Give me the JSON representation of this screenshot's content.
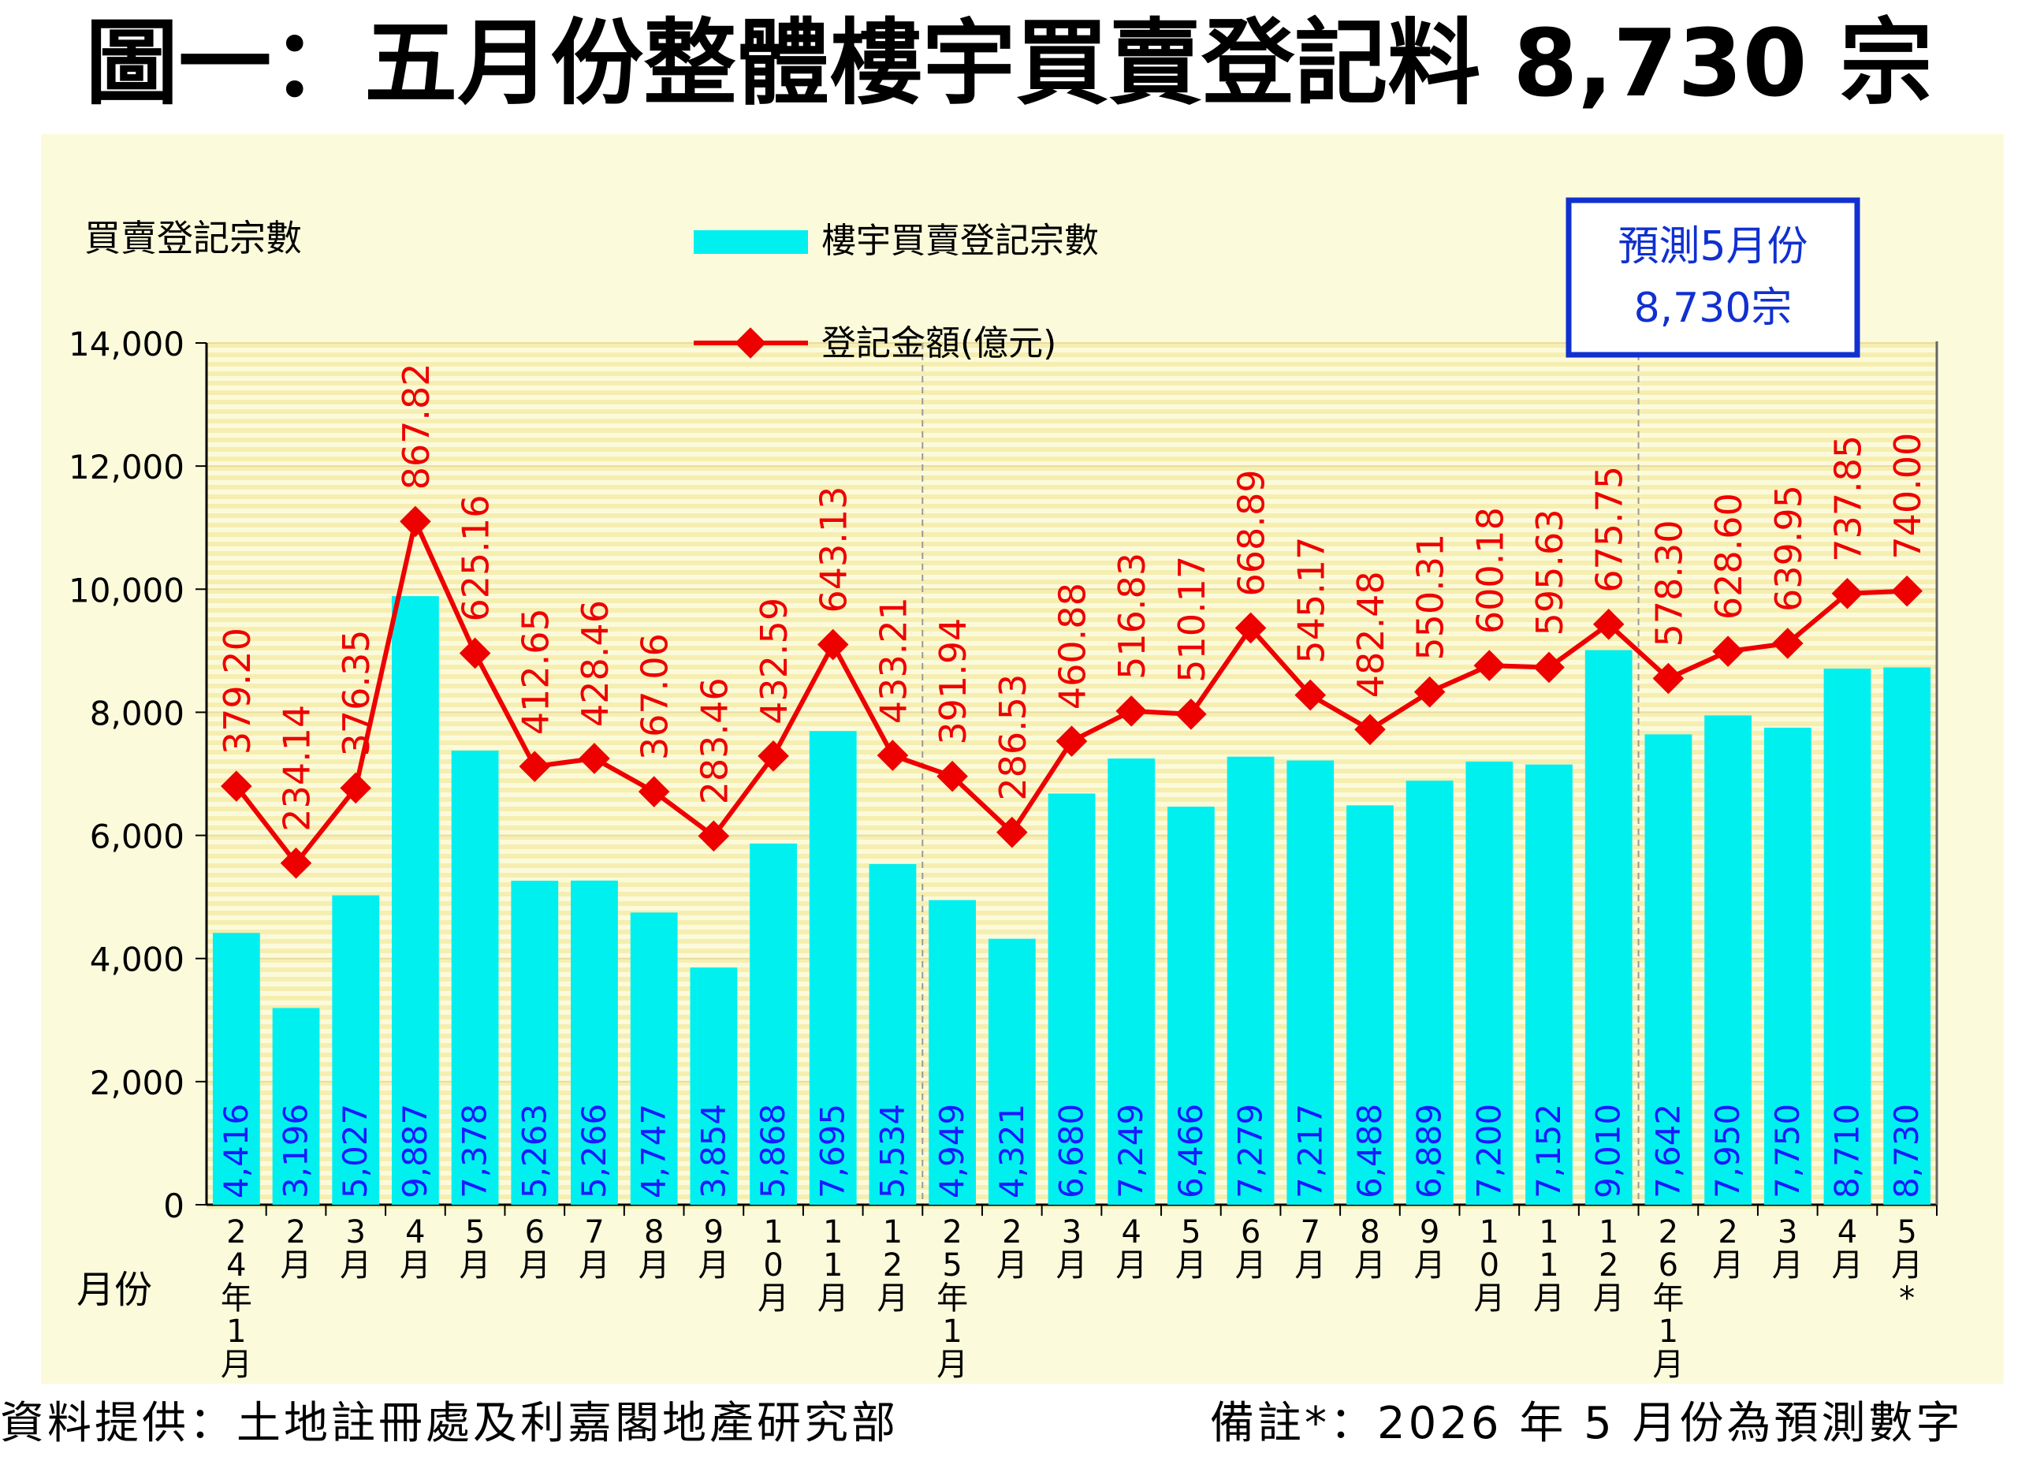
{
  "title": "圖一：五月份整體樓宇買賣登記料 8,730 宗",
  "footer": {
    "source": "資料提供：土地註冊處及利嘉閣地產研究部",
    "remark": "備註*：2026 年 5 月份為預測數字"
  },
  "forecast_box": {
    "line1": "預測5月份",
    "line2": "8,730宗"
  },
  "colors": {
    "bar": "#00f0f0",
    "line": "#ee0000",
    "bar_label": "#1a1aff",
    "line_label": "#ee0000",
    "background": "#fbfbdb",
    "stripe": "#f6eeb0",
    "box_border": "#1030d0",
    "box_text": "#1030d0"
  },
  "chart_data": {
    "type": "bar",
    "ylabel": "買賣登記宗數",
    "xlabel": "月份",
    "ylim": [
      0,
      14000
    ],
    "yticks": [
      "0",
      "2,000",
      "4,000",
      "6,000",
      "8,000",
      "10,000",
      "12,000",
      "14,000"
    ],
    "legend_position": "top-center",
    "grid": true,
    "categories": [
      "24年1月",
      "2月",
      "3月",
      "4月",
      "5月",
      "6月",
      "7月",
      "8月",
      "9月",
      "10月",
      "11月",
      "12月",
      "25年1月",
      "2月",
      "3月",
      "4月",
      "5月",
      "6月",
      "7月",
      "8月",
      "9月",
      "10月",
      "11月",
      "12月",
      "26年1月",
      "2月",
      "3月",
      "4月",
      "5月*"
    ],
    "series": [
      {
        "name": "樓宇買賣登記宗數",
        "type": "bar",
        "values": [
          4416,
          3196,
          5027,
          9887,
          7378,
          5263,
          5266,
          4747,
          3854,
          5868,
          7695,
          5534,
          4949,
          4321,
          6680,
          7249,
          6466,
          7279,
          7217,
          6488,
          6889,
          7200,
          7152,
          9010,
          7642,
          7950,
          7750,
          8710,
          8730
        ],
        "labels": [
          "4,416",
          "3,196",
          "5,027",
          "9,887",
          "7,378",
          "5,263",
          "5,266",
          "4,747",
          "3,854",
          "5,868",
          "7,695",
          "5,534",
          "4,949",
          "4,321",
          "6,680",
          "7,249",
          "6,466",
          "7,279",
          "7,217",
          "6,488",
          "6,889",
          "7,200",
          "7,152",
          "9,010",
          "7,642",
          "7,950",
          "7,750",
          "8,710",
          "8,730"
        ]
      },
      {
        "name": "登記金額(億元)",
        "type": "line",
        "values": [
          379.2,
          234.14,
          376.35,
          867.82,
          625.16,
          412.65,
          428.46,
          367.06,
          283.46,
          432.59,
          643.13,
          433.21,
          391.94,
          286.53,
          460.88,
          516.83,
          510.17,
          668.89,
          545.17,
          482.48,
          550.31,
          600.18,
          595.63,
          675.75,
          578.3,
          628.6,
          639.95,
          737.85,
          740.0
        ],
        "labels": [
          "379.20",
          "234.14",
          "376.35",
          "867.82",
          "625.16",
          "412.65",
          "428.46",
          "367.06",
          "283.46",
          "432.59",
          "643.13",
          "433.21",
          "391.94",
          "286.53",
          "460.88",
          "516.83",
          "510.17",
          "668.89",
          "545.17",
          "482.48",
          "550.31",
          "600.18",
          "595.63",
          "675.75",
          "578.30",
          "628.60",
          "639.95",
          "737.85",
          "740.00"
        ],
        "plotted_on_count_axis": [
          6800,
          5550,
          6770,
          11100,
          8960,
          7120,
          7250,
          6710,
          5990,
          7290,
          9100,
          7300,
          6960,
          6050,
          7530,
          8020,
          7970,
          9370,
          8280,
          7720,
          8330,
          8760,
          8730,
          9430,
          8550,
          8990,
          9120,
          9930,
          9970
        ]
      }
    ]
  }
}
